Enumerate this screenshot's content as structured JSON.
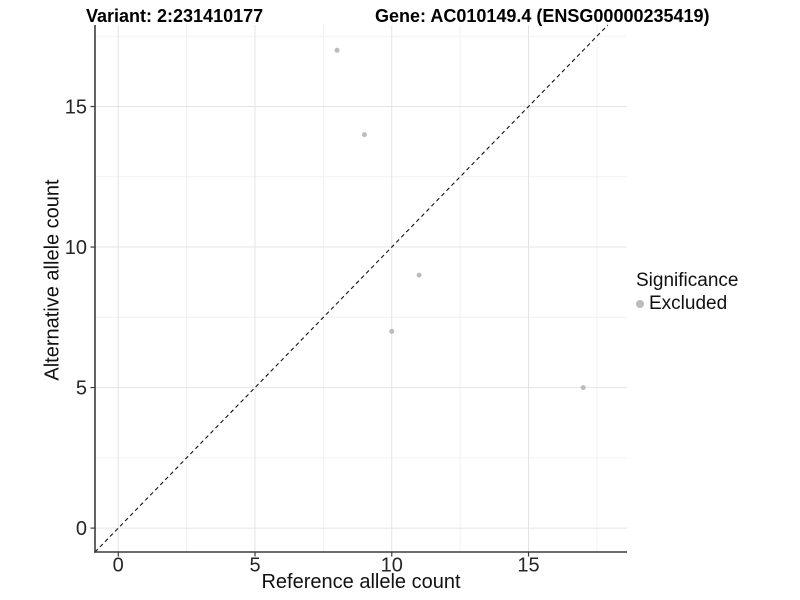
{
  "header": {
    "variant_title": "Variant: 2:231410177",
    "gene_title": "Gene: AC010149.4 (ENSG00000235419)"
  },
  "legend": {
    "title": "Significance",
    "items": [
      {
        "label": "Excluded",
        "marker_color": "#bcbcbc"
      }
    ]
  },
  "palette": {
    "point": "#bcbcbc",
    "grid_major": "#e4e4e4",
    "grid_minor": "#f1f1f1",
    "axis_line": "#3c3c3c",
    "tick_text": "#262626",
    "reference_line": "#111111"
  },
  "chart_data": {
    "type": "scatter",
    "title": "Variant: 2:231410177 / Gene: AC010149.4 (ENSG00000235419)",
    "xlabel": "Reference allele count",
    "ylabel": "Alternative allele count",
    "xlim": [
      -0.85,
      18.6
    ],
    "ylim": [
      -0.85,
      17.9
    ],
    "x_ticks": [
      0,
      5,
      10,
      15
    ],
    "y_ticks": [
      0,
      5,
      10,
      15
    ],
    "x_minor_ticks": [
      2.5,
      7.5,
      12.5,
      17.5
    ],
    "y_minor_ticks": [
      2.5,
      7.5,
      12.5,
      17.5
    ],
    "grid": true,
    "legend_position": "right",
    "legend_title": "Significance",
    "series": [
      {
        "name": "Excluded",
        "color": "#bcbcbc",
        "points": [
          [
            8,
            17
          ],
          [
            9,
            14
          ],
          [
            10,
            7
          ],
          [
            11,
            9
          ],
          [
            17,
            5
          ]
        ]
      }
    ],
    "reference_line": {
      "type": "identity",
      "equation": "y = x",
      "style": "dashed"
    }
  }
}
